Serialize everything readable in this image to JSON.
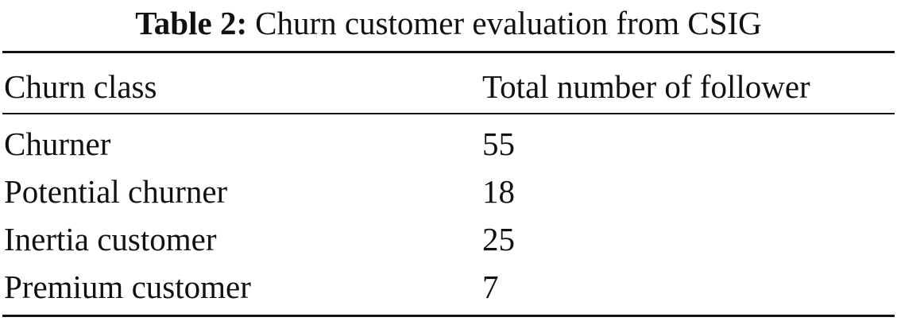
{
  "table": {
    "label": "Table 2:",
    "caption": "Churn customer evaluation from CSIG",
    "columns": [
      "Churn class",
      "Total number of follower"
    ],
    "rows": [
      [
        "Churner",
        "55"
      ],
      [
        "Potential churner",
        "18"
      ],
      [
        "Inertia customer",
        "25"
      ],
      [
        "Premium customer",
        "7"
      ]
    ]
  }
}
